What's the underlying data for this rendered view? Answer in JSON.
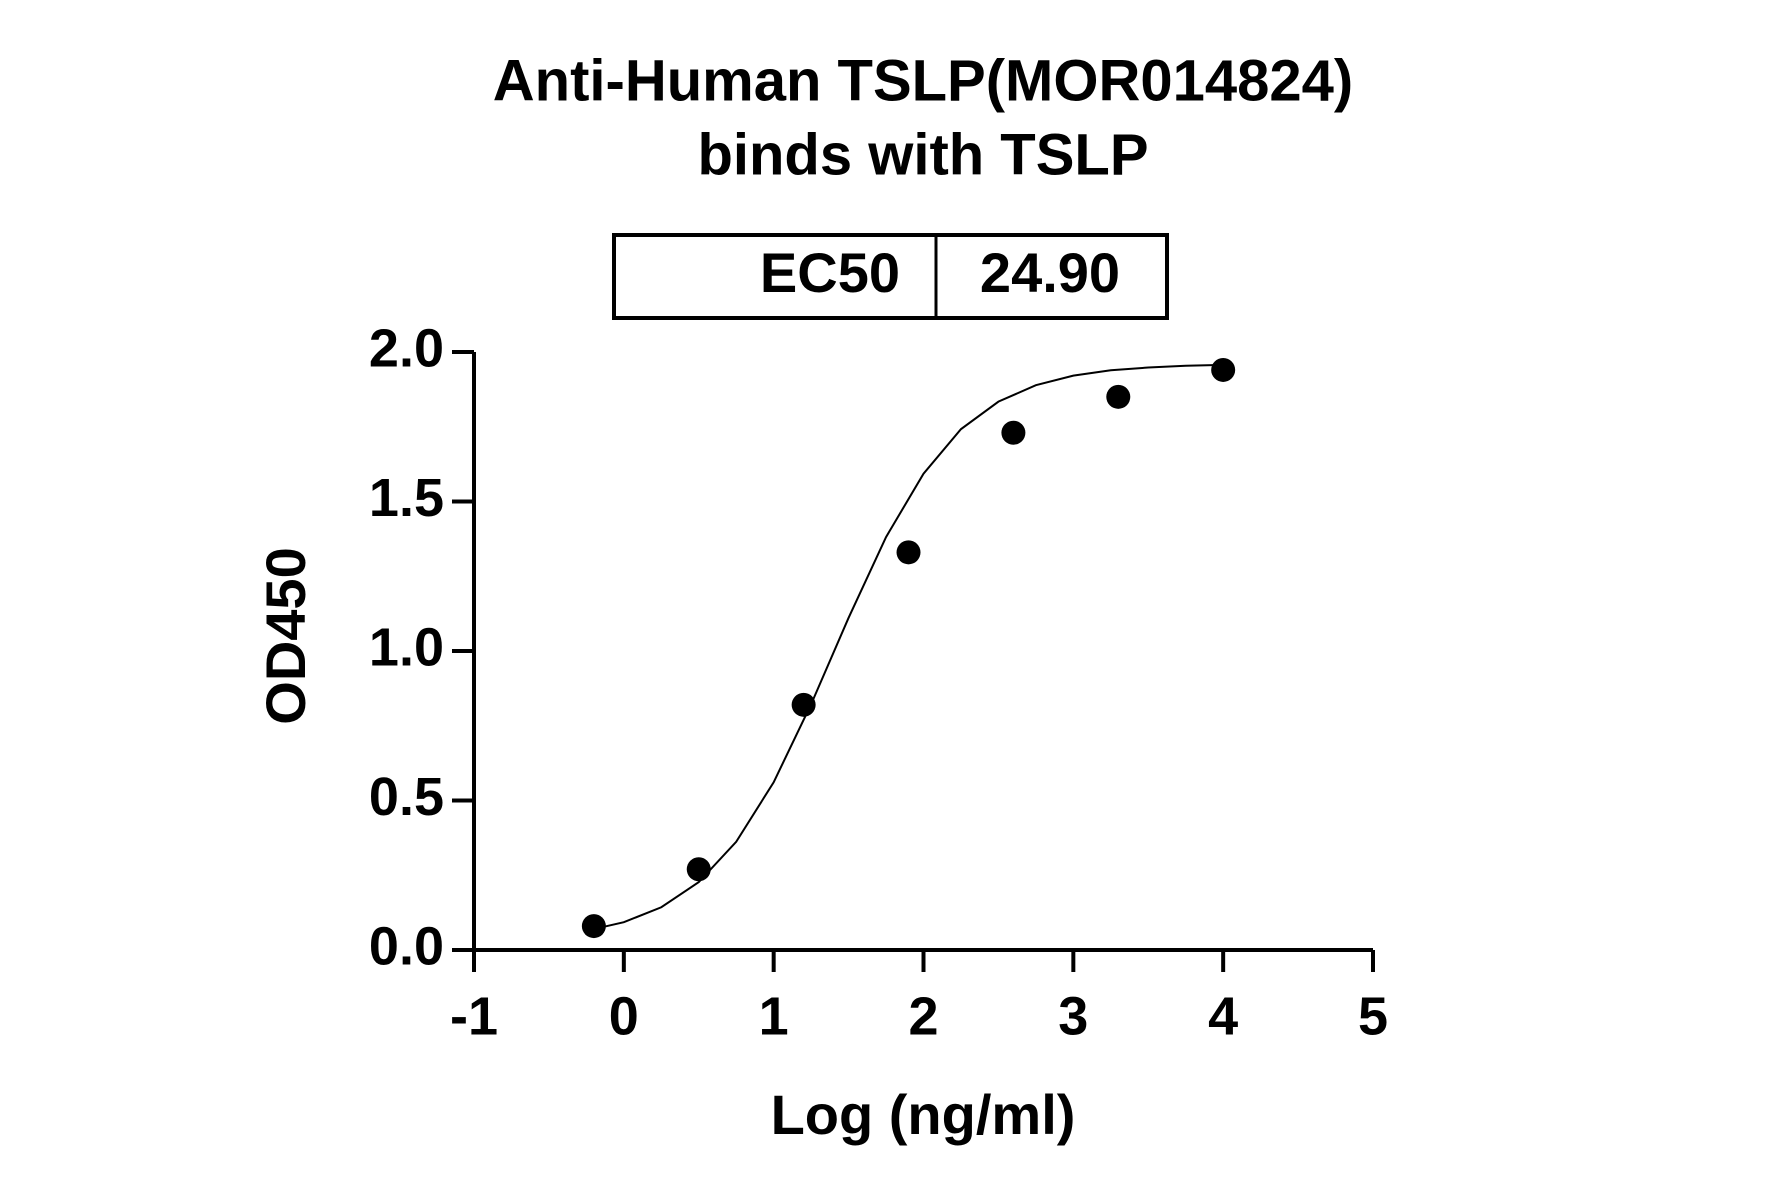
{
  "chart_data": {
    "type": "scatter",
    "title": "Anti-Human TSLP(MOR014824)",
    "subtitle": "binds with TSLP",
    "table": {
      "label": "EC50",
      "value": "24.90"
    },
    "x_label": "Log (ng/ml)",
    "y_label": "OD450",
    "x": [
      -0.2,
      0.5,
      1.2,
      1.9,
      2.6,
      3.3,
      4.0
    ],
    "values": [
      0.08,
      0.27,
      0.82,
      1.33,
      1.73,
      1.85,
      1.94
    ],
    "color": "#000000",
    "curve": {
      "x": [
        -0.2,
        0,
        0.25,
        0.5,
        0.75,
        1,
        1.25,
        1.5,
        1.75,
        2,
        2.25,
        2.5,
        2.75,
        3,
        3.25,
        3.5,
        3.75,
        4
      ],
      "values": [
        0.07,
        0.093,
        0.143,
        0.227,
        0.362,
        0.561,
        0.822,
        1.111,
        1.381,
        1.593,
        1.742,
        1.834,
        1.889,
        1.921,
        1.939,
        1.948,
        1.954,
        1.957
      ]
    },
    "xlim": [
      -1,
      5
    ],
    "xticks": [
      -1,
      0,
      1,
      2,
      3,
      4,
      5
    ],
    "ylim": [
      0,
      2
    ],
    "yticks": [
      {
        "value": 0,
        "label": "0.0"
      },
      {
        "value": 0.5,
        "label": "0.5"
      },
      {
        "value": 1,
        "label": "1.0"
      },
      {
        "value": 1.5,
        "label": "1.5"
      },
      {
        "value": 2,
        "label": "2.0"
      }
    ],
    "grid": false
  }
}
